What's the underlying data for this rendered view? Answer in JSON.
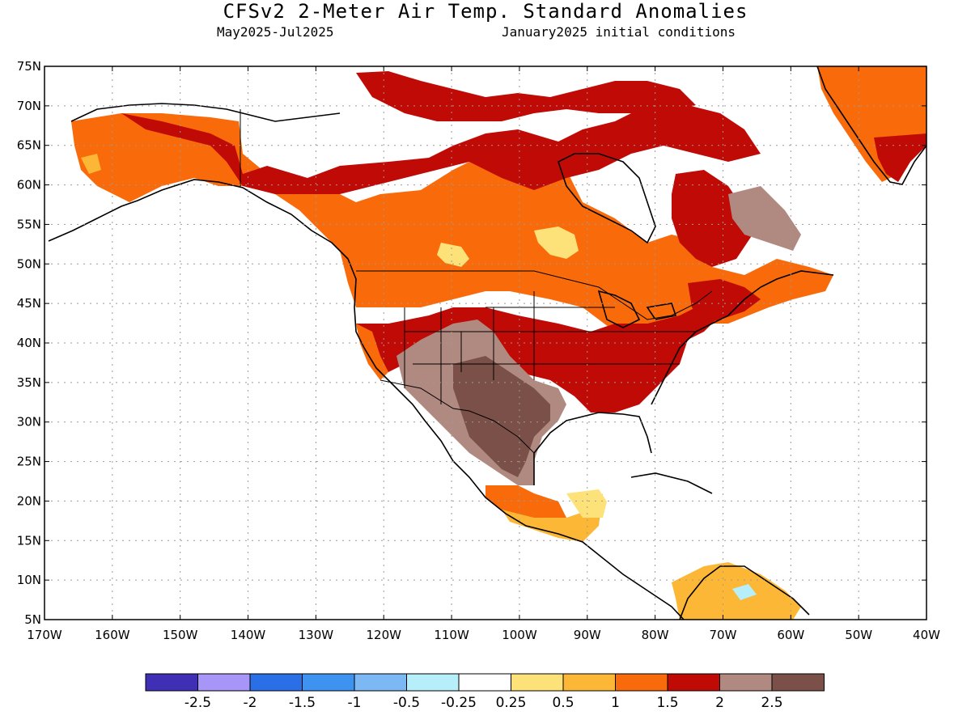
{
  "title": "CFSv2 2-Meter Air Temp. Standard Anomalies",
  "period": "May2025-Jul2025",
  "initial_conditions": "January2025 initial conditions",
  "axes": {
    "lat_labels": [
      "75N",
      "70N",
      "65N",
      "60N",
      "55N",
      "50N",
      "45N",
      "40N",
      "35N",
      "30N",
      "25N",
      "20N",
      "15N",
      "10N",
      "5N"
    ],
    "lon_labels": [
      "170W",
      "160W",
      "150W",
      "140W",
      "130W",
      "120W",
      "110W",
      "100W",
      "90W",
      "80W",
      "70W",
      "60W",
      "50W",
      "40W"
    ],
    "lat_range": [
      5,
      75
    ],
    "lon_range": [
      -170,
      -40
    ],
    "grid": true
  },
  "legend": {
    "colors": [
      "#3e2fb5",
      "#a795f7",
      "#2b6fe6",
      "#3f93f0",
      "#7bb8f4",
      "#b6eefa",
      "#ffffff",
      "#fde27a",
      "#fbb735",
      "#f96a0a",
      "#c00a06",
      "#b08a80",
      "#7a5048"
    ],
    "labels": [
      "-2.5",
      "-2",
      "-1.5",
      "-1",
      "-0.5",
      "-0.25",
      "0.25",
      "0.5",
      "1",
      "1.5",
      "2",
      "2.5"
    ]
  }
}
